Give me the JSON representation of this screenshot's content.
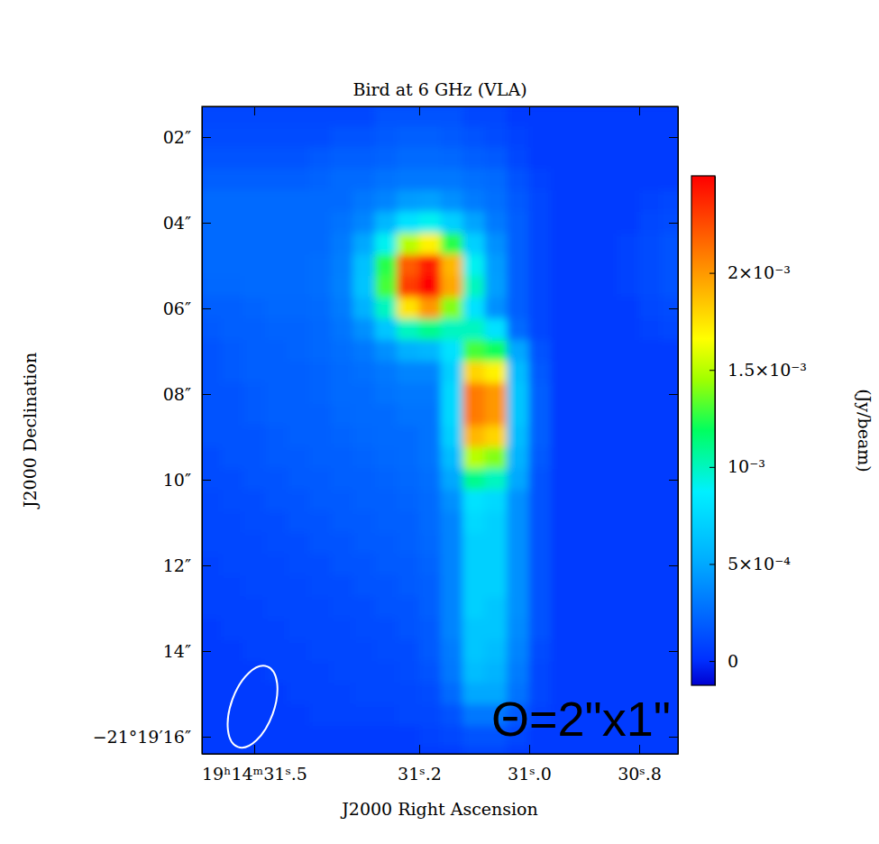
{
  "chart_data": {
    "type": "heatmap",
    "title": "Bird at 6 GHz (VLA)",
    "x_label": "J2000 Right Ascension",
    "y_label": "J2000 Declination",
    "xlim": [
      31.595,
      30.7295
    ],
    "ylim": [
      1.284,
      16.4
    ],
    "xticks": [
      {
        "value": 31.5,
        "label": "19ʰ14ᵐ31ˢ.5"
      },
      {
        "value": 31.2,
        "label": "31ˢ.2"
      },
      {
        "value": 31.0,
        "label": "31ˢ.0"
      },
      {
        "value": 30.8,
        "label": "30ˢ.8"
      }
    ],
    "yticks": [
      {
        "value": 2,
        "label": "02″"
      },
      {
        "value": 4,
        "label": "04″"
      },
      {
        "value": 6,
        "label": "06″"
      },
      {
        "value": 8,
        "label": "08″"
      },
      {
        "value": 10,
        "label": "10″"
      },
      {
        "value": 12,
        "label": "12″"
      },
      {
        "value": 14,
        "label": "14″"
      },
      {
        "value": 16,
        "label": "−21°19′16″"
      }
    ],
    "x": [
      31.58,
      31.54,
      31.5,
      31.46,
      31.42,
      31.38,
      31.34,
      31.3,
      31.26,
      31.22,
      31.18,
      31.14,
      31.1,
      31.06,
      31.02,
      30.98,
      30.94,
      30.9,
      30.86,
      30.82,
      30.78,
      30.74
    ],
    "y": [
      1.5,
      2.0,
      2.5,
      3.0,
      3.5,
      4.0,
      4.5,
      5.0,
      5.5,
      6.0,
      6.5,
      7.0,
      7.5,
      8.0,
      8.5,
      9.0,
      9.5,
      10.0,
      10.5,
      11.0,
      11.5,
      12.0,
      12.5,
      13.0,
      13.5,
      14.0,
      14.5,
      15.0,
      15.5,
      16.0,
      16.5
    ],
    "cells": [
      [
        0.0001,
        0.0001,
        0.0001,
        0.0001,
        0.0001,
        0.0001,
        0.0001,
        0.0001,
        0.00015,
        0.00015,
        0.00015,
        0.00015,
        0.0001,
        0.0001,
        5e-05,
        5e-05,
        5e-05,
        5e-05,
        5e-05,
        5e-05,
        5e-05,
        5e-05
      ],
      [
        0.00012,
        0.00012,
        0.00012,
        0.00012,
        0.00012,
        0.00012,
        0.00015,
        0.00015,
        0.00018,
        0.0002,
        0.0002,
        0.00018,
        0.00015,
        0.00012,
        8e-05,
        5e-05,
        5e-05,
        5e-05,
        5e-05,
        5e-05,
        5e-05,
        5e-05
      ],
      [
        0.00015,
        0.00015,
        0.00015,
        0.00015,
        0.00015,
        0.00018,
        0.0002,
        0.0002,
        0.00022,
        0.00025,
        0.00025,
        0.00023,
        0.0002,
        0.00018,
        0.0001,
        5e-05,
        5e-05,
        5e-05,
        5e-05,
        5e-05,
        5e-05,
        5e-05
      ],
      [
        0.0002,
        0.0002,
        0.0002,
        0.0002,
        0.0002,
        0.00022,
        0.00025,
        0.00025,
        0.00028,
        0.0003,
        0.0003,
        0.0003,
        0.00027,
        0.00025,
        0.00015,
        8e-05,
        5e-05,
        5e-05,
        5e-05,
        5e-05,
        5e-05,
        5e-05
      ],
      [
        0.00025,
        0.00025,
        0.00025,
        0.00025,
        0.00025,
        0.00025,
        0.00025,
        0.0003,
        0.00035,
        0.00045,
        0.00047,
        0.0004,
        0.00032,
        0.00027,
        0.00018,
        0.0001,
        5e-05,
        5e-05,
        5e-05,
        5e-05,
        8e-05,
        0.0001
      ],
      [
        0.00025,
        0.00025,
        0.00025,
        0.00025,
        0.00025,
        0.00025,
        0.00028,
        0.00036,
        0.00057,
        0.0008,
        0.0009,
        0.0007,
        0.00048,
        0.00031,
        0.0002,
        0.0001,
        5e-05,
        5e-05,
        5e-05,
        5e-05,
        0.0001,
        0.00012
      ],
      [
        0.00025,
        0.00025,
        0.00025,
        0.00025,
        0.00025,
        0.00025,
        0.00031,
        0.0005,
        0.0009,
        0.0015,
        0.0017,
        0.00125,
        0.0007,
        0.0004,
        0.0002,
        0.0001,
        5e-05,
        5e-05,
        5e-05,
        8e-05,
        0.00012,
        0.00015
      ],
      [
        0.00025,
        0.00025,
        0.00025,
        0.00025,
        0.00025,
        0.00026,
        0.00033,
        0.00062,
        0.00125,
        0.0022,
        0.0024,
        0.0019,
        0.0009,
        0.00045,
        0.0002,
        0.0001,
        5e-05,
        5e-05,
        5e-05,
        8e-05,
        0.00012,
        0.00015
      ],
      [
        0.00023,
        0.00023,
        0.00025,
        0.00025,
        0.00025,
        0.00026,
        0.00034,
        0.00064,
        0.0013,
        0.0023,
        0.0025,
        0.00195,
        0.001,
        0.00046,
        0.0002,
        0.0001,
        5e-05,
        5e-05,
        5e-05,
        8e-05,
        0.00012,
        0.00015
      ],
      [
        0.0002,
        0.0002,
        0.00022,
        0.00023,
        0.00023,
        0.00025,
        0.00032,
        0.00054,
        0.001,
        0.00175,
        0.002,
        0.0014,
        0.0008,
        0.0004,
        0.0002,
        0.0001,
        5e-05,
        5e-05,
        5e-05,
        5e-05,
        0.0001,
        0.00012
      ],
      [
        0.00018,
        0.0002,
        0.0002,
        0.00022,
        0.00022,
        0.00023,
        0.00029,
        0.0004,
        0.00065,
        0.001,
        0.0011,
        0.001,
        0.001,
        0.0008,
        0.00025,
        0.0001,
        5e-05,
        5e-05,
        5e-05,
        5e-05,
        8e-05,
        0.0001
      ],
      [
        0.00015,
        0.00018,
        0.0002,
        0.0002,
        0.00022,
        0.00023,
        0.00026,
        0.0003,
        0.0004,
        0.00053,
        0.00057,
        0.0008,
        0.0013,
        0.0012,
        0.0005,
        0.00015,
        5e-05,
        5e-05,
        5e-05,
        5e-05,
        5e-05,
        5e-05
      ],
      [
        0.00015,
        0.00018,
        0.0002,
        0.0002,
        0.0002,
        0.00022,
        0.00025,
        0.00027,
        0.0003,
        0.00035,
        0.00035,
        0.0007,
        0.0018,
        0.0017,
        0.0006,
        0.00018,
        5e-05,
        5e-05,
        5e-05,
        5e-05,
        5e-05,
        5e-05
      ],
      [
        0.00015,
        0.00015,
        0.00018,
        0.0002,
        0.0002,
        0.00022,
        0.00025,
        0.00025,
        0.00028,
        0.0003,
        0.0003,
        0.00075,
        0.0021,
        0.002,
        0.00065,
        0.0002,
        5e-05,
        5e-05,
        5e-05,
        5e-05,
        5e-05,
        5e-05
      ],
      [
        0.00015,
        0.00015,
        0.00018,
        0.0002,
        0.0002,
        0.0002,
        0.00023,
        0.00025,
        0.00025,
        0.00028,
        0.00028,
        0.00075,
        0.0021,
        0.002,
        0.00065,
        0.0002,
        5e-05,
        5e-05,
        5e-05,
        5e-05,
        5e-05,
        5e-05
      ],
      [
        0.00015,
        0.00015,
        0.00015,
        0.00018,
        0.0002,
        0.0002,
        0.00022,
        0.00023,
        0.00025,
        0.00025,
        0.00028,
        0.0007,
        0.0019,
        0.0018,
        0.0006,
        0.0002,
        5e-05,
        5e-05,
        5e-05,
        5e-05,
        5e-05,
        5e-05
      ],
      [
        0.00012,
        0.00015,
        0.00015,
        0.00018,
        0.00018,
        0.0002,
        0.0002,
        0.00022,
        0.00023,
        0.00025,
        0.00028,
        0.0006,
        0.0015,
        0.0014,
        0.00055,
        0.00018,
        5e-05,
        5e-05,
        5e-05,
        5e-05,
        5e-05,
        5e-05
      ],
      [
        0.00012,
        0.00012,
        0.00015,
        0.00015,
        0.00018,
        0.00018,
        0.0002,
        0.0002,
        0.00022,
        0.00023,
        0.00026,
        0.0005,
        0.0011,
        0.001,
        0.0005,
        0.00015,
        5e-05,
        5e-05,
        5e-05,
        5e-05,
        5e-05,
        5e-05
      ],
      [
        0.0001,
        0.00012,
        0.00012,
        0.00015,
        0.00015,
        0.00018,
        0.00018,
        0.0002,
        0.0002,
        0.00022,
        0.00025,
        0.0004,
        0.0008,
        0.00075,
        0.0004,
        0.00015,
        5e-05,
        5e-05,
        5e-05,
        5e-05,
        5e-05,
        5e-05
      ],
      [
        0.0001,
        0.0001,
        0.00012,
        0.00012,
        0.00015,
        0.00015,
        0.00018,
        0.00018,
        0.0002,
        0.0002,
        0.00025,
        0.00035,
        0.00075,
        0.0007,
        0.0004,
        0.00015,
        5e-05,
        5e-05,
        5e-05,
        5e-05,
        5e-05,
        5e-05
      ],
      [
        0.0001,
        0.0001,
        0.0001,
        0.00012,
        0.00012,
        0.00015,
        0.00015,
        0.00018,
        0.00018,
        0.0002,
        0.00023,
        0.00035,
        0.0007,
        0.0007,
        0.0004,
        0.00015,
        5e-05,
        5e-05,
        5e-05,
        5e-05,
        5e-05,
        5e-05
      ],
      [
        8e-05,
        0.0001,
        0.0001,
        0.0001,
        0.00012,
        0.00012,
        0.00015,
        0.00015,
        0.00018,
        0.00018,
        0.00022,
        0.00035,
        0.0007,
        0.0007,
        0.0004,
        0.00015,
        5e-05,
        5e-05,
        5e-05,
        5e-05,
        5e-05,
        5e-05
      ],
      [
        8e-05,
        8e-05,
        0.0001,
        0.0001,
        0.0001,
        0.00012,
        0.00012,
        0.00015,
        0.00015,
        0.00018,
        0.0002,
        0.00035,
        0.0007,
        0.0007,
        0.0004,
        0.00015,
        5e-05,
        5e-05,
        5e-05,
        5e-05,
        5e-05,
        5e-05
      ],
      [
        8e-05,
        8e-05,
        8e-05,
        0.0001,
        0.0001,
        0.0001,
        0.00012,
        0.00012,
        0.00015,
        0.00015,
        0.0002,
        0.00035,
        0.0007,
        0.00065,
        0.0004,
        0.00015,
        5e-05,
        5e-05,
        5e-05,
        5e-05,
        5e-05,
        5e-05
      ],
      [
        5e-05,
        8e-05,
        8e-05,
        8e-05,
        0.0001,
        0.0001,
        0.0001,
        0.00012,
        0.00012,
        0.00015,
        0.00018,
        0.00035,
        0.00065,
        0.00065,
        0.00038,
        0.00015,
        5e-05,
        5e-05,
        5e-05,
        5e-05,
        5e-05,
        5e-05
      ],
      [
        5e-05,
        5e-05,
        8e-05,
        8e-05,
        8e-05,
        0.0001,
        0.0001,
        0.0001,
        0.00012,
        0.00012,
        0.00018,
        0.00032,
        0.00065,
        0.0006,
        0.00035,
        0.00012,
        5e-05,
        5e-05,
        5e-05,
        5e-05,
        5e-05,
        5e-05
      ],
      [
        5e-05,
        5e-05,
        5e-05,
        8e-05,
        8e-05,
        8e-05,
        0.0001,
        0.0001,
        0.0001,
        0.00012,
        0.00015,
        0.0003,
        0.0006,
        0.00055,
        0.00032,
        0.0001,
        5e-05,
        5e-05,
        5e-05,
        5e-05,
        5e-05,
        5e-05
      ],
      [
        5e-05,
        5e-05,
        5e-05,
        5e-05,
        8e-05,
        8e-05,
        8e-05,
        0.0001,
        0.0001,
        0.0001,
        0.00012,
        0.00025,
        0.0005,
        0.0005,
        0.00028,
        0.0001,
        5e-05,
        5e-05,
        5e-05,
        5e-05,
        5e-05,
        5e-05
      ],
      [
        5e-05,
        5e-05,
        5e-05,
        5e-05,
        5e-05,
        8e-05,
        8e-05,
        8e-05,
        8e-05,
        0.0001,
        0.0001,
        0.00015,
        0.0003,
        0.0003,
        0.00018,
        8e-05,
        5e-05,
        5e-05,
        5e-05,
        5e-05,
        5e-05,
        5e-05
      ],
      [
        5e-05,
        5e-05,
        5e-05,
        5e-05,
        5e-05,
        5e-05,
        5e-05,
        5e-05,
        5e-05,
        5e-05,
        8e-05,
        0.0001,
        0.00015,
        0.00015,
        0.0001,
        5e-05,
        5e-05,
        5e-05,
        5e-05,
        5e-05,
        5e-05,
        5e-05
      ],
      [
        5e-05,
        5e-05,
        5e-05,
        5e-05,
        5e-05,
        5e-05,
        5e-05,
        5e-05,
        5e-05,
        5e-05,
        5e-05,
        5e-05,
        8e-05,
        8e-05,
        5e-05,
        5e-05,
        5e-05,
        5e-05,
        5e-05,
        5e-05,
        5e-05,
        5e-05
      ]
    ],
    "colorbar": {
      "range": [
        -0.000125,
        0.0025
      ],
      "ticks": [
        0,
        {
          "value": 0.0005,
          "label": "5×10⁻⁴"
        },
        {
          "value": 0.001,
          "label": "10⁻³"
        },
        {
          "value": 0.0015,
          "label": "1.5×10⁻³"
        },
        {
          "value": 0.002,
          "label": "2×10⁻³"
        }
      ],
      "label": "(Jy/beam)"
    },
    "beam": {
      "major": 2,
      "minor": 1,
      "pa": -20,
      "ra": 31.503,
      "dec": 15.3
    },
    "annotation": "Θ=2\"x1\""
  }
}
